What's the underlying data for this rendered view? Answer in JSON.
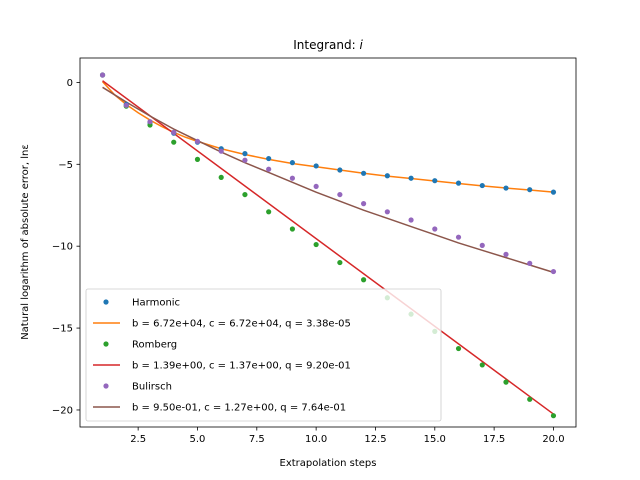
{
  "chart_data": {
    "type": "scatter",
    "title": "Integrand: i",
    "xlabel": "Extrapolation steps",
    "ylabel": "Natural logarithm of absolute error, lnε",
    "xlim": [
      0.05,
      20.95
    ],
    "ylim": [
      -21.04,
      1.49
    ],
    "xticks": [
      2.5,
      5.0,
      7.5,
      10.0,
      12.5,
      15.0,
      17.5,
      20.0
    ],
    "xtick_labels": [
      "2.5",
      "5.0",
      "7.5",
      "10.0",
      "12.5",
      "15.0",
      "17.5",
      "20.0"
    ],
    "yticks": [
      0,
      -5,
      -10,
      -15,
      -20
    ],
    "ytick_labels": [
      "0",
      "−5",
      "−10",
      "−15",
      "−20"
    ],
    "legend_position": "lower-left",
    "series": [
      {
        "name": "Harmonic",
        "kind": "points",
        "color": "#1f77b4",
        "x": [
          1,
          2,
          3,
          4,
          5,
          6,
          7,
          8,
          9,
          10,
          11,
          12,
          13,
          14,
          15,
          16,
          17,
          18,
          19,
          20
        ],
        "y": [
          0.45,
          -1.35,
          -2.45,
          -3.1,
          -3.65,
          -4.05,
          -4.35,
          -4.65,
          -4.9,
          -5.1,
          -5.35,
          -5.55,
          -5.7,
          -5.85,
          -6.0,
          -6.15,
          -6.3,
          -6.45,
          -6.55,
          -6.7
        ]
      },
      {
        "name": "b = 6.72e+04, c = 6.72e+04, q = 3.38e-05",
        "kind": "line",
        "color": "#ff7f0e",
        "x": [
          1,
          1.5,
          2,
          2.5,
          3,
          3.5,
          4,
          4.5,
          5,
          6,
          7,
          8,
          9,
          10,
          11,
          12,
          13,
          14,
          15,
          16,
          17,
          18,
          19,
          20
        ],
        "y": [
          0.05,
          -0.75,
          -1.35,
          -1.85,
          -2.3,
          -2.7,
          -3.05,
          -3.35,
          -3.6,
          -4.05,
          -4.4,
          -4.7,
          -4.95,
          -5.15,
          -5.35,
          -5.55,
          -5.72,
          -5.87,
          -6.02,
          -6.17,
          -6.32,
          -6.45,
          -6.57,
          -6.7
        ]
      },
      {
        "name": "Romberg",
        "kind": "points",
        "color": "#2ca02c",
        "x": [
          1,
          2,
          3,
          4,
          5,
          6,
          7,
          8,
          9,
          10,
          11,
          12,
          13,
          14,
          15,
          16,
          17,
          18,
          19,
          20
        ],
        "y": [
          0.45,
          -1.45,
          -2.6,
          -3.65,
          -4.7,
          -5.8,
          -6.85,
          -7.9,
          -8.95,
          -9.9,
          -11.0,
          -12.05,
          -13.15,
          -14.15,
          -15.2,
          -16.25,
          -17.25,
          -18.3,
          -19.35,
          -20.35
        ]
      },
      {
        "name": "b = 1.39e+00, c = 1.37e+00, q = 9.20e-01",
        "kind": "line",
        "color": "#d62728",
        "x": [
          1,
          20
        ],
        "y": [
          0.1,
          -20.25
        ]
      },
      {
        "name": "Bulirsch",
        "kind": "points",
        "color": "#9467bd",
        "x": [
          1,
          2,
          3,
          4,
          5,
          6,
          7,
          8,
          9,
          10,
          11,
          12,
          13,
          14,
          15,
          16,
          17,
          18,
          19,
          20
        ],
        "y": [
          0.45,
          -1.4,
          -2.4,
          -3.05,
          -3.6,
          -4.2,
          -4.75,
          -5.3,
          -5.85,
          -6.35,
          -6.85,
          -7.4,
          -7.9,
          -8.4,
          -8.95,
          -9.45,
          -9.95,
          -10.5,
          -11.05,
          -11.55
        ]
      },
      {
        "name": "b = 9.50e-01, c = 1.27e+00, q = 7.64e-01",
        "kind": "line",
        "color": "#8c564b",
        "x": [
          1,
          1.5,
          2,
          3,
          4,
          5,
          6,
          7,
          8,
          9,
          10,
          11,
          12,
          13,
          14,
          15,
          16,
          17,
          18,
          19,
          20
        ],
        "y": [
          -0.3,
          -0.75,
          -1.2,
          -2.05,
          -2.85,
          -3.55,
          -4.25,
          -4.9,
          -5.5,
          -6.1,
          -6.7,
          -7.25,
          -7.8,
          -8.3,
          -8.8,
          -9.3,
          -9.8,
          -10.25,
          -10.7,
          -11.15,
          -11.6
        ]
      }
    ]
  }
}
